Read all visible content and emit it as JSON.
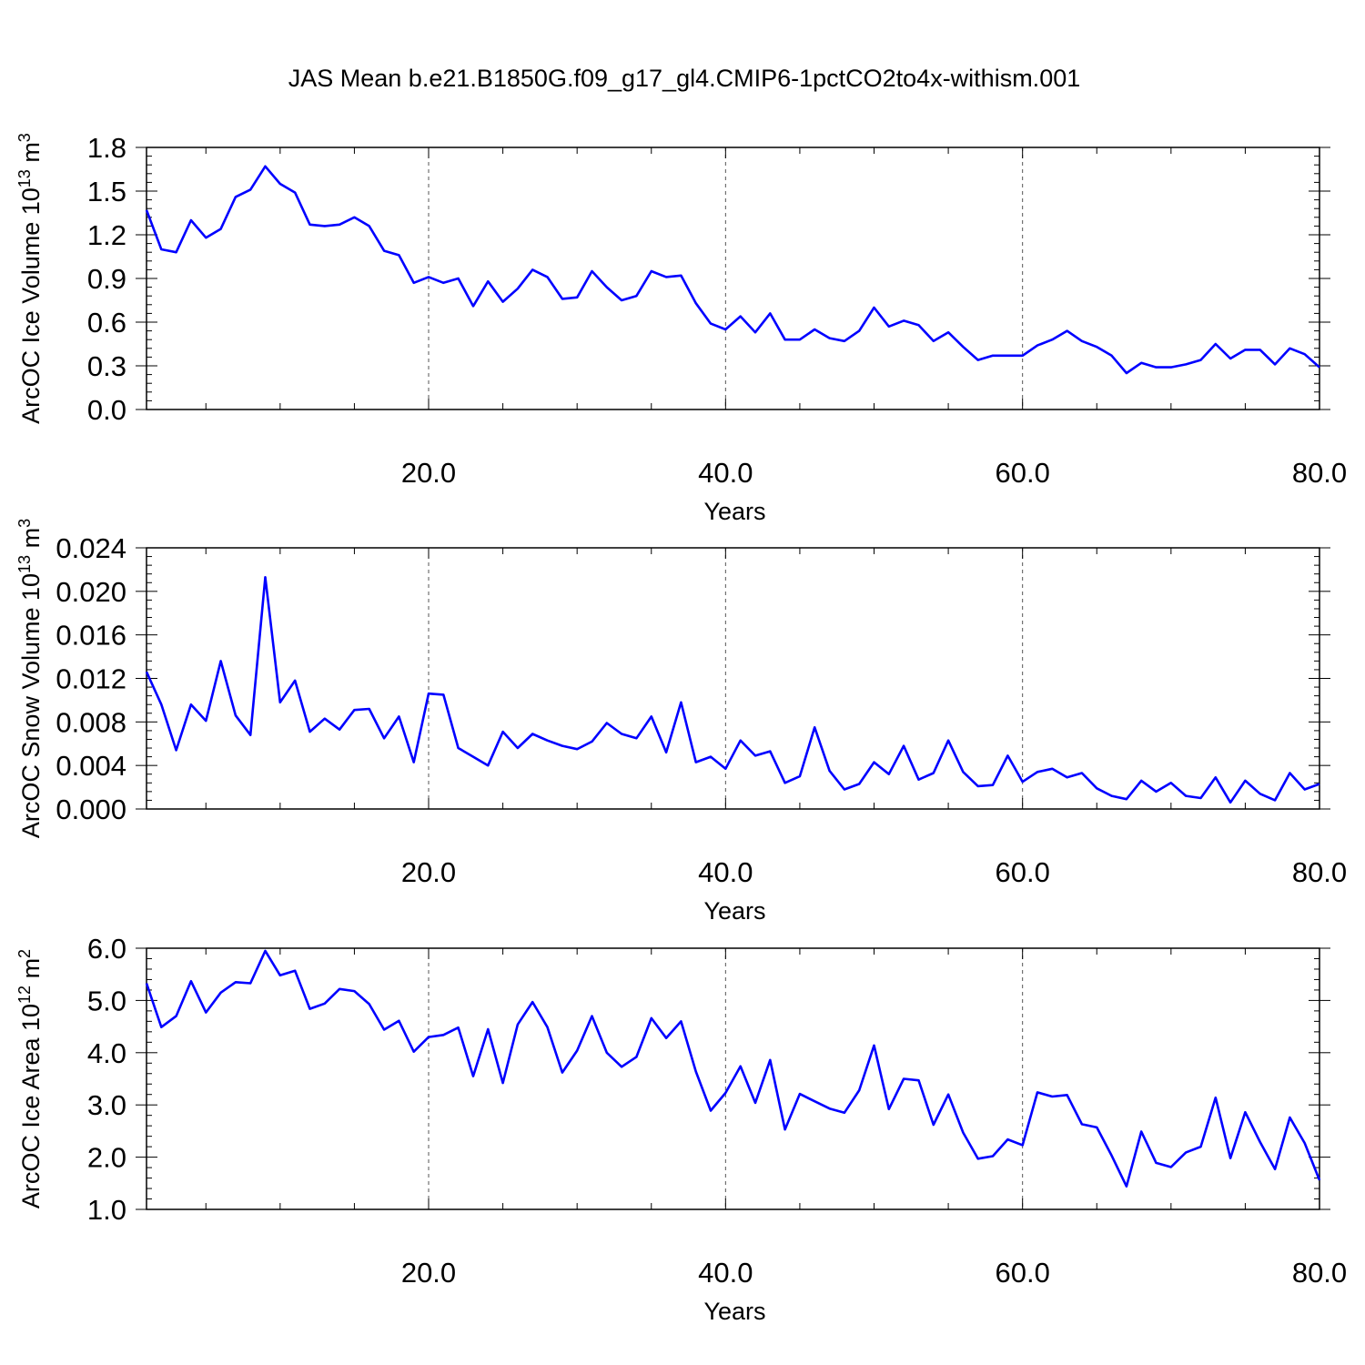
{
  "title": "JAS Mean b.e21.B1850G.f09_g17_gl4.CMIP6-1pctCO2to4x-withism.001",
  "chart_data": [
    {
      "type": "line",
      "ylabel": "ArcOC Ice Volume 10",
      "ylabel_sup": "13",
      "ylabel_unit": " m",
      "ylabel_unit_sup": "3",
      "xlabel": "Years",
      "xlim": [
        1,
        80
      ],
      "ylim": [
        0.0,
        1.8
      ],
      "xticks": [
        20,
        40,
        60,
        80
      ],
      "xtick_labels": [
        "20.0",
        "40.0",
        "60.0",
        "80.0"
      ],
      "yticks": [
        0.0,
        0.3,
        0.6,
        0.9,
        1.2,
        1.5,
        1.8
      ],
      "ytick_labels": [
        "0.0",
        "0.3",
        "0.6",
        "0.9",
        "1.2",
        "1.5",
        "1.8"
      ],
      "grid": "x-dashed",
      "color": "#0000ff",
      "values": [
        1.37,
        1.1,
        1.08,
        1.3,
        1.18,
        1.24,
        1.46,
        1.51,
        1.67,
        1.55,
        1.49,
        1.27,
        1.26,
        1.27,
        1.32,
        1.26,
        1.09,
        1.06,
        0.87,
        0.91,
        0.87,
        0.9,
        0.71,
        0.88,
        0.74,
        0.83,
        0.96,
        0.91,
        0.76,
        0.77,
        0.95,
        0.84,
        0.75,
        0.78,
        0.95,
        0.91,
        0.92,
        0.73,
        0.59,
        0.55,
        0.64,
        0.53,
        0.66,
        0.48,
        0.48,
        0.55,
        0.49,
        0.47,
        0.54,
        0.7,
        0.57,
        0.61,
        0.58,
        0.47,
        0.53,
        0.43,
        0.34,
        0.37,
        0.37,
        0.37,
        0.44,
        0.48,
        0.54,
        0.47,
        0.43,
        0.37,
        0.25,
        0.32,
        0.29,
        0.29,
        0.31,
        0.34,
        0.45,
        0.35,
        0.41,
        0.41,
        0.31,
        0.42,
        0.38,
        0.29
      ]
    },
    {
      "type": "line",
      "ylabel": "ArcOC Snow Volume 10",
      "ylabel_sup": "13",
      "ylabel_unit": " m",
      "ylabel_unit_sup": "3",
      "xlabel": "Years",
      "xlim": [
        1,
        80
      ],
      "ylim": [
        0.0,
        0.024
      ],
      "xticks": [
        20,
        40,
        60,
        80
      ],
      "xtick_labels": [
        "20.0",
        "40.0",
        "60.0",
        "80.0"
      ],
      "yticks": [
        0.0,
        0.004,
        0.008,
        0.012,
        0.016,
        0.02,
        0.024
      ],
      "ytick_labels": [
        "0.000",
        "0.004",
        "0.008",
        "0.012",
        "0.016",
        "0.020",
        "0.024"
      ],
      "grid": "x-dashed",
      "color": "#0000ff",
      "values": [
        0.0126,
        0.0096,
        0.0054,
        0.0096,
        0.0081,
        0.0136,
        0.0086,
        0.0068,
        0.0213,
        0.0098,
        0.0118,
        0.0071,
        0.0083,
        0.0073,
        0.0091,
        0.0092,
        0.0065,
        0.0085,
        0.0043,
        0.0106,
        0.0105,
        0.0056,
        0.0048,
        0.004,
        0.0071,
        0.0056,
        0.0069,
        0.0063,
        0.0058,
        0.0055,
        0.0062,
        0.0079,
        0.0069,
        0.0065,
        0.0085,
        0.0052,
        0.0098,
        0.0043,
        0.0048,
        0.0037,
        0.0063,
        0.0049,
        0.0053,
        0.0024,
        0.003,
        0.0075,
        0.0035,
        0.0018,
        0.0023,
        0.0043,
        0.0032,
        0.0058,
        0.0027,
        0.0033,
        0.0063,
        0.0034,
        0.0021,
        0.0022,
        0.0049,
        0.0025,
        0.0034,
        0.0037,
        0.0029,
        0.0033,
        0.0019,
        0.0012,
        0.0009,
        0.0026,
        0.0016,
        0.0024,
        0.0012,
        0.001,
        0.0029,
        0.0006,
        0.0026,
        0.0014,
        0.0008,
        0.0033,
        0.0018,
        0.0023
      ]
    },
    {
      "type": "line",
      "ylabel": "ArcOC Ice Area 10",
      "ylabel_sup": "12",
      "ylabel_unit": " m",
      "ylabel_unit_sup": "2",
      "xlabel": "Years",
      "xlim": [
        1,
        80
      ],
      "ylim": [
        1.0,
        6.0
      ],
      "xticks": [
        20,
        40,
        60,
        80
      ],
      "xtick_labels": [
        "20.0",
        "40.0",
        "60.0",
        "80.0"
      ],
      "yticks": [
        1.0,
        2.0,
        3.0,
        4.0,
        5.0,
        6.0
      ],
      "ytick_labels": [
        "1.0",
        "2.0",
        "3.0",
        "4.0",
        "5.0",
        "6.0"
      ],
      "grid": "x-dashed",
      "color": "#0000ff",
      "values": [
        5.33,
        4.49,
        4.7,
        5.37,
        4.77,
        5.15,
        5.35,
        5.33,
        5.95,
        5.48,
        5.57,
        4.84,
        4.94,
        5.22,
        5.18,
        4.93,
        4.44,
        4.61,
        4.02,
        4.3,
        4.34,
        4.48,
        3.55,
        4.45,
        3.42,
        4.54,
        4.97,
        4.49,
        3.62,
        4.04,
        4.7,
        4.0,
        3.73,
        3.92,
        4.66,
        4.28,
        4.6,
        3.64,
        2.89,
        3.23,
        3.74,
        3.04,
        3.86,
        2.53,
        3.21,
        3.07,
        2.93,
        2.85,
        3.28,
        4.14,
        2.92,
        3.5,
        3.47,
        2.62,
        3.2,
        2.47,
        1.97,
        2.02,
        2.34,
        2.23,
        3.24,
        3.16,
        3.19,
        2.63,
        2.57,
        2.03,
        1.44,
        2.49,
        1.89,
        1.81,
        2.09,
        2.2,
        3.14,
        1.98,
        2.86,
        2.29,
        1.77,
        2.76,
        2.27,
        1.56
      ]
    }
  ]
}
